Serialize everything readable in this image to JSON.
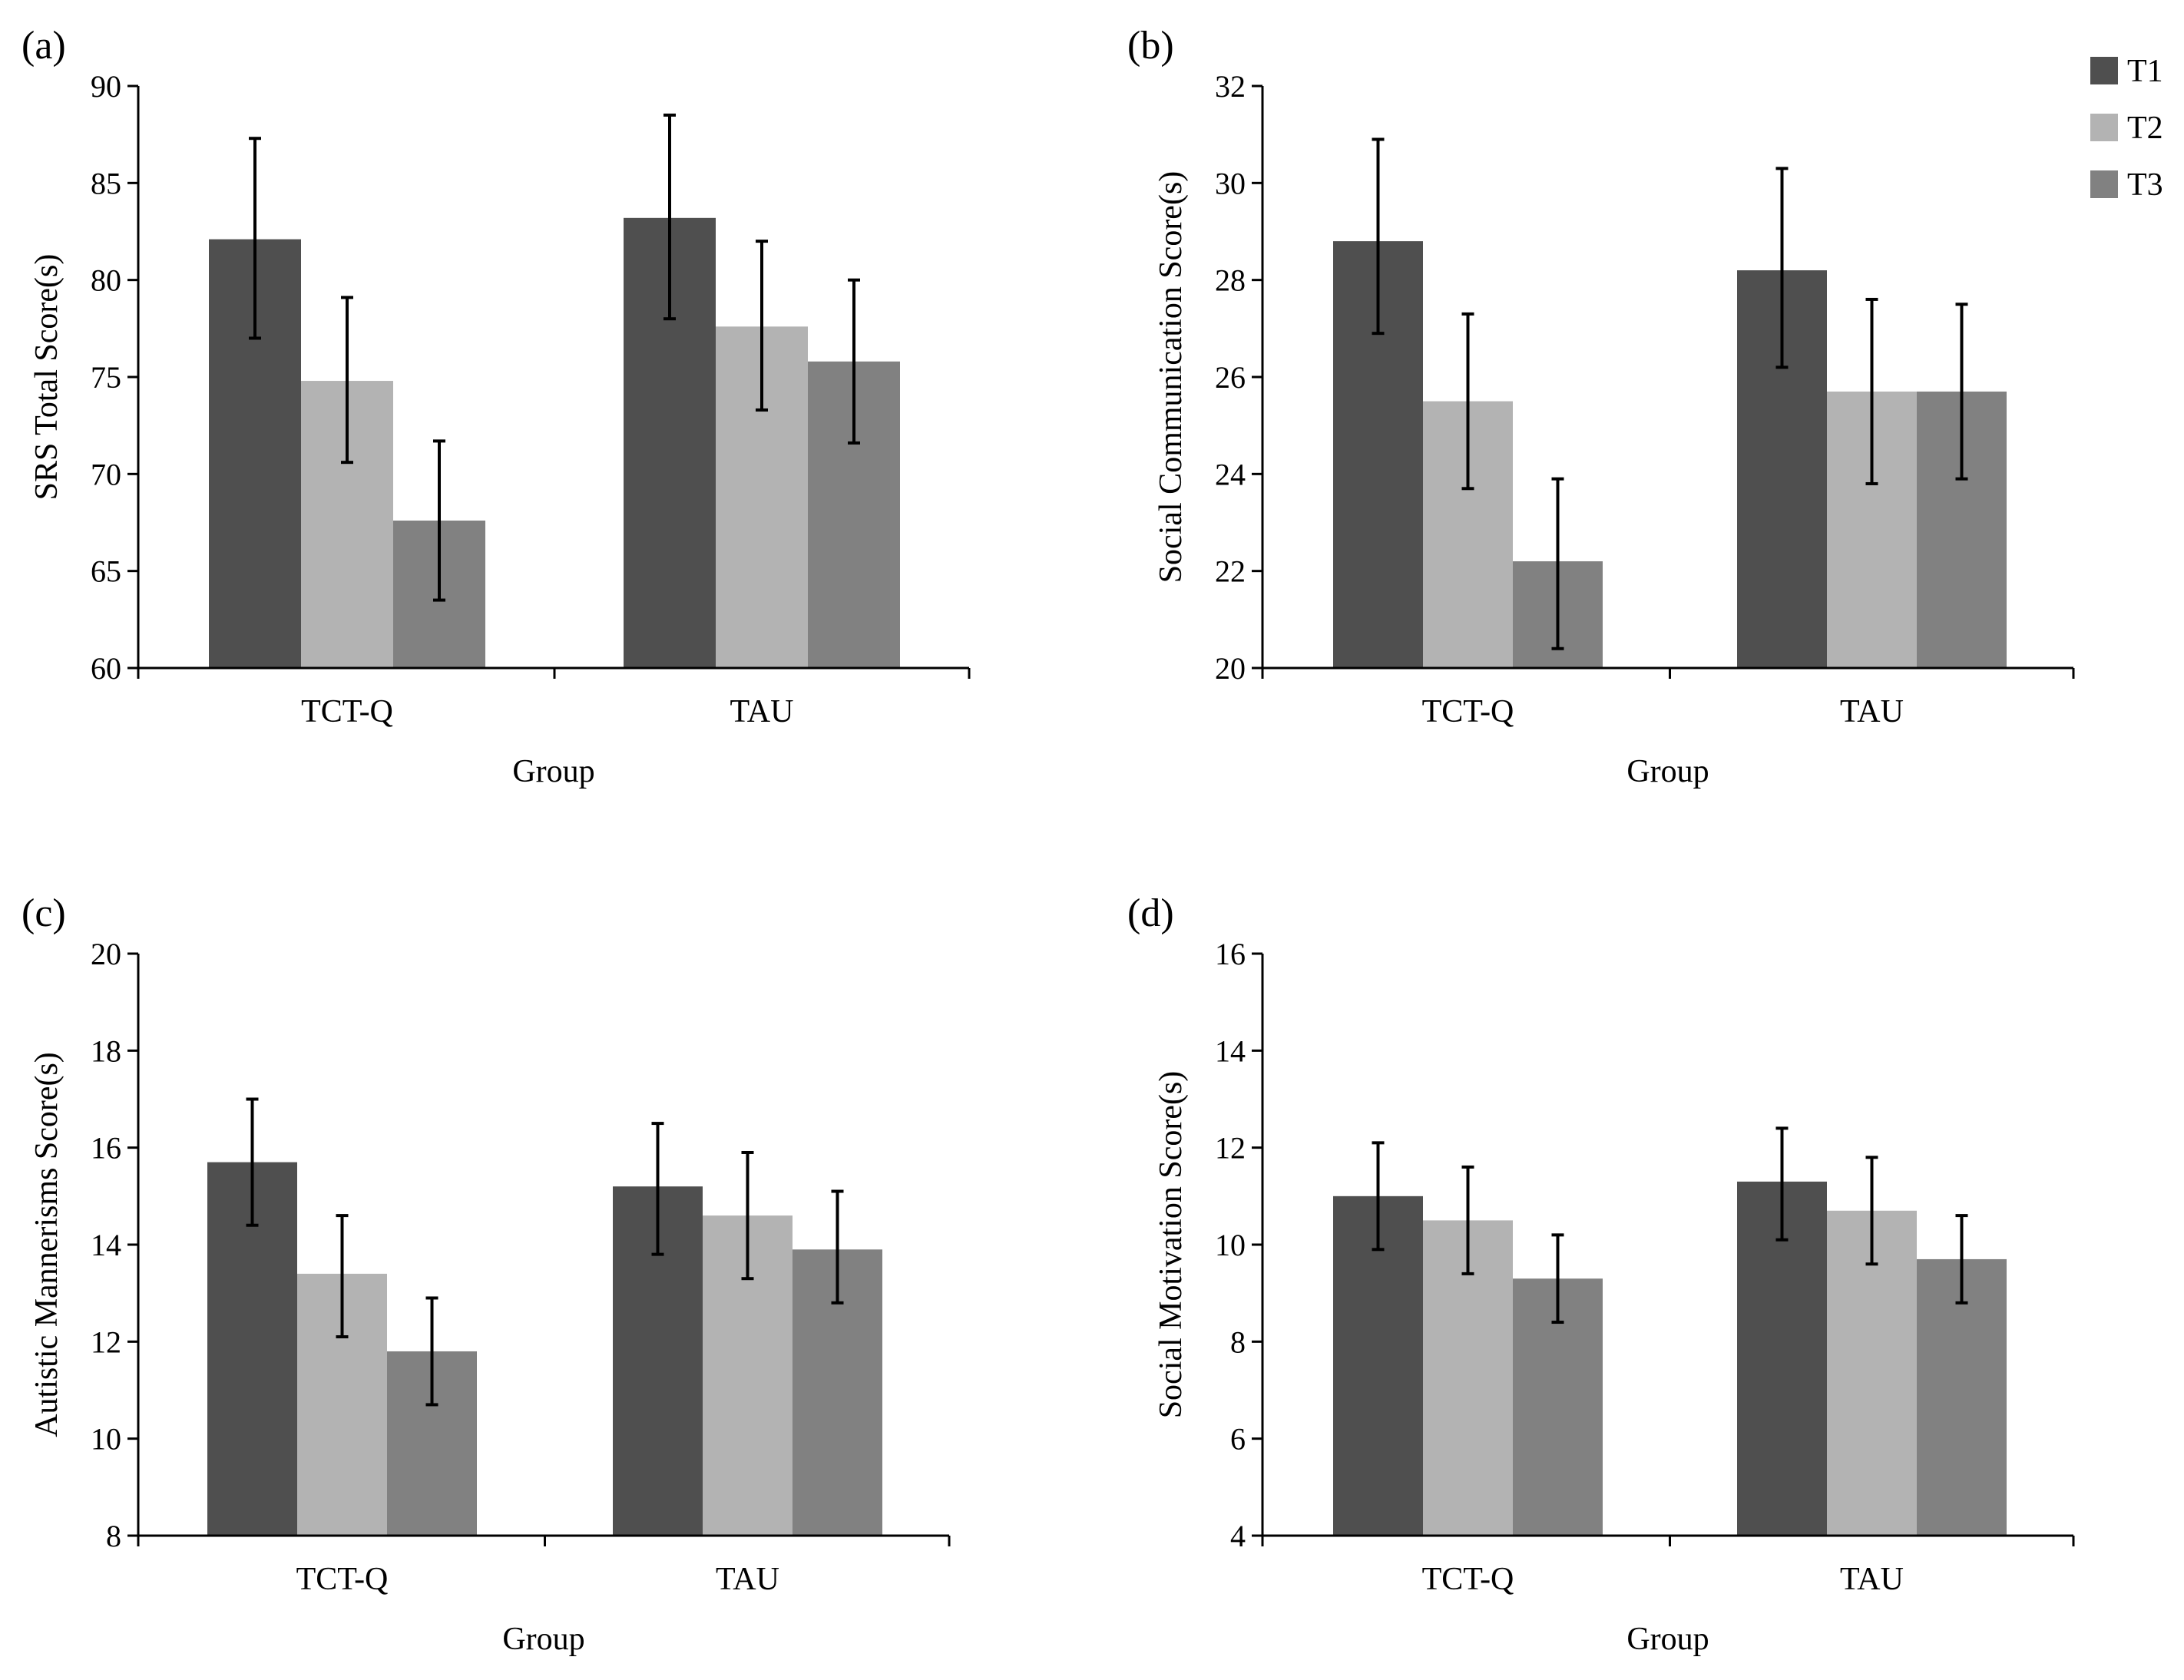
{
  "legend": {
    "entries": [
      {
        "name": "T1",
        "color": "#4f4f4f"
      },
      {
        "name": "T2",
        "color": "#b3b3b3"
      },
      {
        "name": "T3",
        "color": "#818181"
      }
    ]
  },
  "chart_data": [
    {
      "panel": "(a)",
      "type": "bar",
      "ylabel": "SRS Total Score(s)",
      "xlabel": "Group",
      "categories": [
        "TCT-Q",
        "TAU"
      ],
      "ylim": [
        60,
        90
      ],
      "yticks": [
        60,
        65,
        70,
        75,
        80,
        85,
        90
      ],
      "series": [
        {
          "name": "T1",
          "values": [
            82.1,
            83.2
          ],
          "err_low": [
            77.0,
            78.0
          ],
          "err_high": [
            87.3,
            88.5
          ]
        },
        {
          "name": "T2",
          "values": [
            74.8,
            77.6
          ],
          "err_low": [
            70.6,
            73.3
          ],
          "err_high": [
            79.1,
            82.0
          ]
        },
        {
          "name": "T3",
          "values": [
            67.6,
            75.8
          ],
          "err_low": [
            63.5,
            71.6
          ],
          "err_high": [
            71.7,
            80.0
          ]
        }
      ]
    },
    {
      "panel": "(b)",
      "type": "bar",
      "ylabel": "Social Communication Score(s)",
      "xlabel": "Group",
      "categories": [
        "TCT-Q",
        "TAU"
      ],
      "ylim": [
        20,
        32
      ],
      "yticks": [
        20,
        22,
        24,
        26,
        28,
        30,
        32
      ],
      "series": [
        {
          "name": "T1",
          "values": [
            28.8,
            28.2
          ],
          "err_low": [
            26.9,
            26.2
          ],
          "err_high": [
            30.9,
            30.3
          ]
        },
        {
          "name": "T2",
          "values": [
            25.5,
            25.7
          ],
          "err_low": [
            23.7,
            23.8
          ],
          "err_high": [
            27.3,
            27.6
          ]
        },
        {
          "name": "T3",
          "values": [
            22.2,
            25.7
          ],
          "err_low": [
            20.4,
            23.9
          ],
          "err_high": [
            23.9,
            27.5
          ]
        }
      ]
    },
    {
      "panel": "(c)",
      "type": "bar",
      "ylabel": "Autistic Mannerisms Score(s)",
      "xlabel": "Group",
      "categories": [
        "TCT-Q",
        "TAU"
      ],
      "ylim": [
        8,
        20
      ],
      "yticks": [
        8,
        10,
        12,
        14,
        16,
        18,
        20
      ],
      "series": [
        {
          "name": "T1",
          "values": [
            15.7,
            15.2
          ],
          "err_low": [
            14.4,
            13.8
          ],
          "err_high": [
            17.0,
            16.5
          ]
        },
        {
          "name": "T2",
          "values": [
            13.4,
            14.6
          ],
          "err_low": [
            12.1,
            13.3
          ],
          "err_high": [
            14.6,
            15.9
          ]
        },
        {
          "name": "T3",
          "values": [
            11.8,
            13.9
          ],
          "err_low": [
            10.7,
            12.8
          ],
          "err_high": [
            12.9,
            15.1
          ]
        }
      ]
    },
    {
      "panel": "(d)",
      "type": "bar",
      "ylabel": "Social Motivation Score(s)",
      "xlabel": "Group",
      "categories": [
        "TCT-Q",
        "TAU"
      ],
      "ylim": [
        4,
        16
      ],
      "yticks": [
        4,
        6,
        8,
        10,
        12,
        14,
        16
      ],
      "series": [
        {
          "name": "T1",
          "values": [
            11.0,
            11.3
          ],
          "err_low": [
            9.9,
            10.1
          ],
          "err_high": [
            12.1,
            12.4
          ]
        },
        {
          "name": "T2",
          "values": [
            10.5,
            10.7
          ],
          "err_low": [
            9.4,
            9.6
          ],
          "err_high": [
            11.6,
            11.8
          ]
        },
        {
          "name": "T3",
          "values": [
            9.3,
            9.7
          ],
          "err_low": [
            8.4,
            8.8
          ],
          "err_high": [
            10.2,
            10.6
          ]
        }
      ]
    }
  ]
}
